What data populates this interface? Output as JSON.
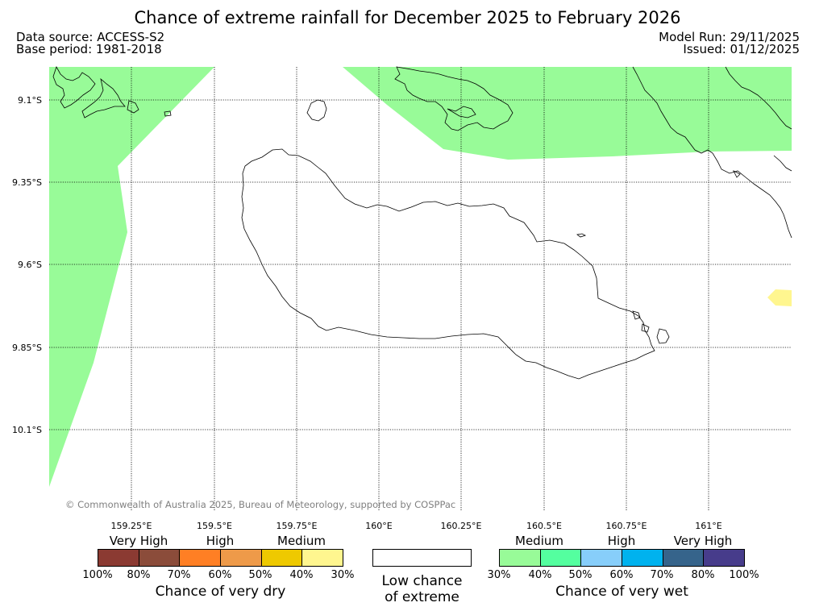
{
  "header": {
    "title": "Chance of extreme rainfall for December 2025 to February 2026",
    "data_source": "Data source: ACCESS-S2",
    "base_period": "Base period: 1981-2018",
    "model_run": "Model Run: 29/11/2025",
    "issued": "Issued: 01/12/2025"
  },
  "map": {
    "lat_labels": [
      "9.1°S",
      "9.35°S",
      "9.6°S",
      "9.85°S",
      "10.1°S"
    ],
    "lon_labels": [
      "159.25°E",
      "159.5°E",
      "159.75°E",
      "160°E",
      "160.25°E",
      "160.5°E",
      "160.75°E",
      "161°E"
    ],
    "copyright": "© Commonwealth of Australia 2025, Bureau of Meteorology, supported by COSPPac",
    "colors": {
      "medium_wet": "#98fb98",
      "medium_dry": "#fff68f",
      "coast": "#000000"
    }
  },
  "legend": {
    "dry": {
      "categories": [
        "Very High",
        "High",
        "Medium"
      ],
      "swatches": [
        "#8b3a32",
        "#8b4c3a",
        "#ff7f24",
        "#ee9a49",
        "#eec900",
        "#fff68f"
      ],
      "ticks": [
        "100%",
        "80%",
        "70%",
        "60%",
        "50%",
        "40%",
        "30%"
      ],
      "caption": "Chance of very dry"
    },
    "low": {
      "line1": "Low chance",
      "line2": "of extreme"
    },
    "wet": {
      "categories": [
        "Medium",
        "High",
        "Very High"
      ],
      "swatches": [
        "#98fb98",
        "#54ff9f",
        "#87cefa",
        "#00b2ee",
        "#36648b",
        "#473c8b"
      ],
      "ticks": [
        "30%",
        "40%",
        "50%",
        "60%",
        "70%",
        "80%",
        "100%"
      ],
      "caption": "Chance of very wet"
    }
  }
}
